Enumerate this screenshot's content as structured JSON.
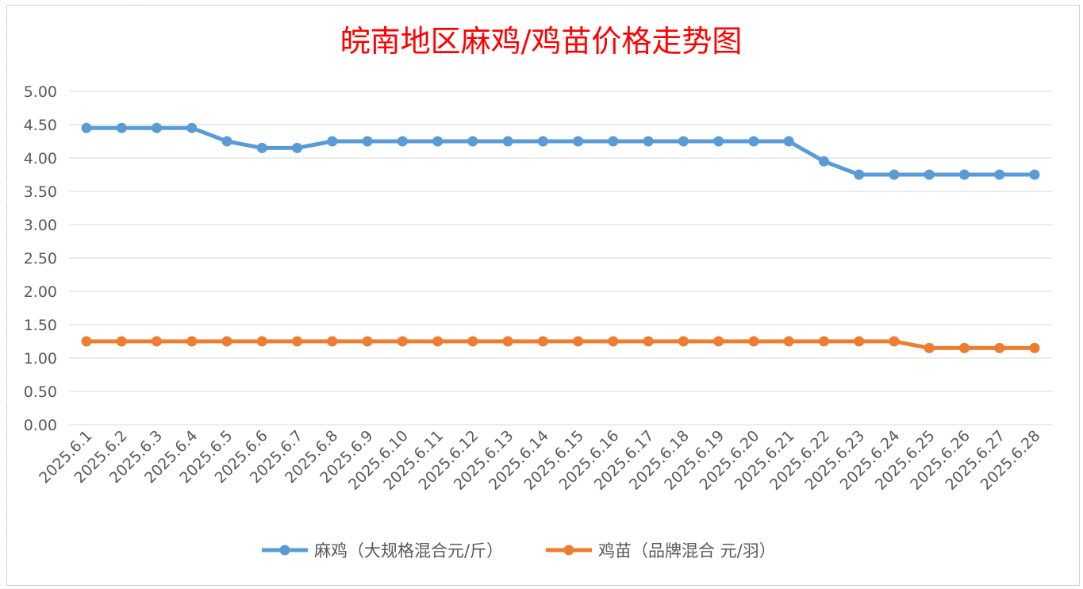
{
  "chart_data": {
    "type": "line",
    "title": "皖南地区麻鸡/鸡苗价格走势图",
    "xlabel": "",
    "ylabel": "",
    "ylim": [
      0,
      5
    ],
    "ytick_step": 0.5,
    "y_decimals": 2,
    "grid": true,
    "legend_position": "bottom",
    "categories": [
      "2025.6.1",
      "2025.6.2",
      "2025.6.3",
      "2025.6.4",
      "2025.6.5",
      "2025.6.6",
      "2025.6.7",
      "2025.6.8",
      "2025.6.9",
      "2025.6.10",
      "2025.6.11",
      "2025.6.12",
      "2025.6.13",
      "2025.6.14",
      "2025.6.15",
      "2025.6.16",
      "2025.6.17",
      "2025.6.18",
      "2025.6.19",
      "2025.6.20",
      "2025.6.21",
      "2025.6.22",
      "2025.6.23",
      "2025.6.24",
      "2025.6.25",
      "2025.6.26",
      "2025.6.27",
      "2025.6.28"
    ],
    "series": [
      {
        "name": "麻鸡（大规格混合元/斤）",
        "color": "#5b9bd5",
        "values": [
          4.45,
          4.45,
          4.45,
          4.45,
          4.25,
          4.15,
          4.15,
          4.25,
          4.25,
          4.25,
          4.25,
          4.25,
          4.25,
          4.25,
          4.25,
          4.25,
          4.25,
          4.25,
          4.25,
          4.25,
          4.25,
          3.95,
          3.75,
          3.75,
          3.75,
          3.75,
          3.75,
          3.75
        ]
      },
      {
        "name": "鸡苗（品牌混合 元/羽）",
        "color": "#ed7d31",
        "values": [
          1.25,
          1.25,
          1.25,
          1.25,
          1.25,
          1.25,
          1.25,
          1.25,
          1.25,
          1.25,
          1.25,
          1.25,
          1.25,
          1.25,
          1.25,
          1.25,
          1.25,
          1.25,
          1.25,
          1.25,
          1.25,
          1.25,
          1.25,
          1.25,
          1.15,
          1.15,
          1.15,
          1.15
        ]
      }
    ]
  }
}
